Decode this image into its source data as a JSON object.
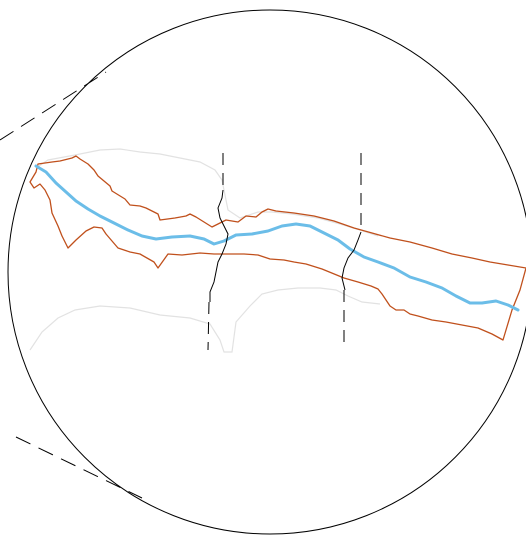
{
  "map": {
    "background_color": "#ffffff",
    "layers": [
      {
        "id": "zoom-circle",
        "kind": "circular map frame",
        "color": "#000000"
      },
      {
        "id": "zoom-leader-lines",
        "kind": "dashed zoom connector lines",
        "color": "#000000"
      },
      {
        "id": "context-outline",
        "kind": "faint surrounding boundary",
        "color": "#e2e2e2"
      },
      {
        "id": "river-corridor",
        "kind": "river corridor boundary",
        "color": "#c0501c"
      },
      {
        "id": "river",
        "kind": "river centerline",
        "color": "#6bbde8"
      },
      {
        "id": "cross-boundaries",
        "kind": "crossing boundary lines (dashed outside corridor)",
        "color": "#000000"
      }
    ]
  }
}
